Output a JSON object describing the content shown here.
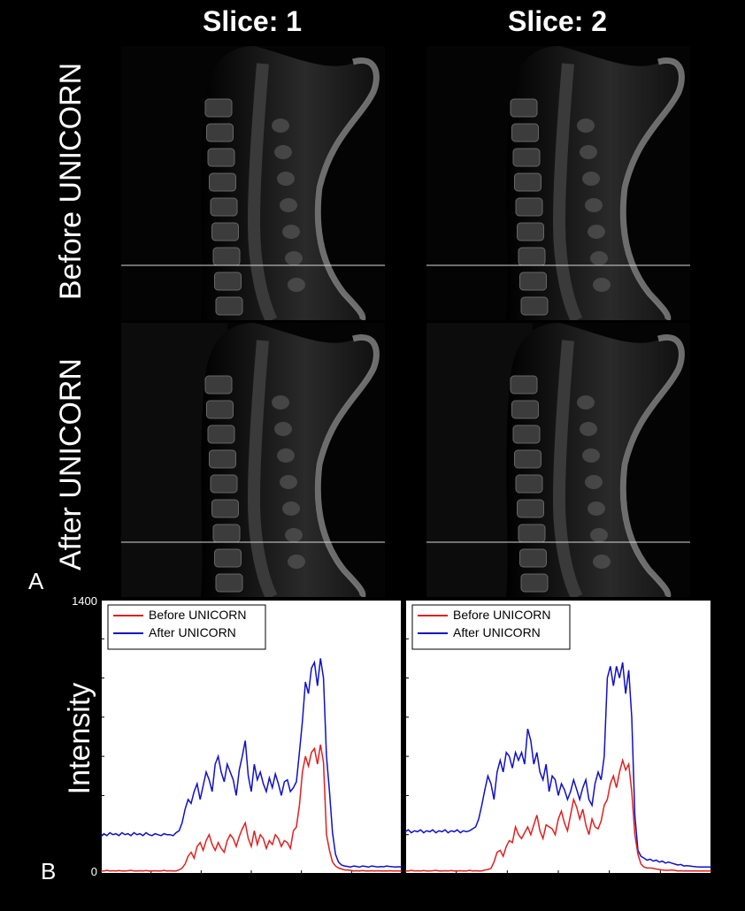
{
  "columns": [
    "Slice: 1",
    "Slice: 2"
  ],
  "rows": [
    "Before UNICORN",
    "After UNICORN"
  ],
  "panel_labels": {
    "a": "A",
    "b": "B"
  },
  "colors": {
    "before": "#e02020",
    "after": "#1010c8"
  },
  "chart_data": [
    {
      "type": "line",
      "ylabel": "Intensity",
      "ylim": [
        0,
        1400
      ],
      "ytick_labels": [
        "0",
        "1400"
      ],
      "legend_position": "top-left",
      "x": [
        0,
        3,
        6,
        9,
        12,
        15,
        18,
        21,
        24,
        27,
        30,
        33,
        36,
        39,
        42,
        45,
        48,
        51,
        54,
        57,
        60,
        63,
        66,
        69,
        72,
        75,
        78,
        81,
        84,
        87,
        90,
        93,
        96,
        99,
        102,
        105,
        108,
        111,
        114,
        117,
        120,
        123,
        126,
        129,
        132,
        135,
        138,
        141,
        144,
        147,
        150,
        153,
        156,
        159,
        162,
        165,
        168,
        171,
        174,
        177,
        180,
        183,
        186,
        189,
        192,
        195,
        198,
        201,
        204,
        207,
        210,
        213,
        216,
        219,
        222,
        225,
        228,
        231,
        234,
        237,
        240,
        243,
        246,
        249,
        252,
        255,
        258,
        261,
        264,
        267,
        270,
        273,
        276,
        279,
        282,
        285,
        288,
        291,
        294,
        297,
        300
      ],
      "series": [
        {
          "name": "Before UNICORN",
          "values": [
            15,
            15,
            18,
            15,
            16,
            15,
            17,
            15,
            15,
            16,
            18,
            15,
            15,
            16,
            15,
            17,
            15,
            15,
            16,
            15,
            15,
            18,
            15,
            16,
            15,
            15,
            20,
            30,
            50,
            90,
            110,
            80,
            140,
            160,
            120,
            170,
            200,
            150,
            120,
            160,
            130,
            110,
            170,
            200,
            180,
            140,
            190,
            230,
            260,
            180,
            140,
            220,
            150,
            200,
            180,
            130,
            170,
            150,
            200,
            180,
            140,
            170,
            160,
            130,
            220,
            240,
            350,
            520,
            600,
            550,
            620,
            640,
            560,
            660,
            570,
            200,
            120,
            60,
            40,
            30,
            25,
            20,
            20,
            18,
            15,
            16,
            15,
            17,
            15,
            15,
            16,
            15,
            16,
            15,
            15,
            15,
            16,
            15,
            15,
            15,
            15
          ]
        },
        {
          "name": "After UNICORN",
          "values": [
            190,
            205,
            195,
            210,
            200,
            205,
            195,
            210,
            200,
            205,
            195,
            210,
            200,
            205,
            195,
            210,
            200,
            195,
            205,
            200,
            195,
            205,
            200,
            200,
            195,
            210,
            220,
            260,
            330,
            380,
            360,
            420,
            460,
            380,
            450,
            520,
            480,
            420,
            560,
            600,
            520,
            470,
            560,
            520,
            480,
            400,
            530,
            600,
            680,
            500,
            420,
            560,
            480,
            520,
            460,
            420,
            490,
            440,
            510,
            460,
            400,
            470,
            480,
            420,
            440,
            470,
            620,
            780,
            980,
            920,
            1050,
            1080,
            960,
            1100,
            1000,
            600,
            420,
            210,
            100,
            60,
            45,
            40,
            38,
            35,
            40,
            38,
            35,
            40,
            38,
            35,
            40,
            38,
            35,
            37,
            36,
            40,
            38,
            36,
            35,
            36,
            35
          ]
        }
      ]
    },
    {
      "type": "line",
      "ylabel": "",
      "ylim": [
        0,
        1400
      ],
      "ytick_labels": [],
      "legend_position": "top-left",
      "x": [
        0,
        3,
        6,
        9,
        12,
        15,
        18,
        21,
        24,
        27,
        30,
        33,
        36,
        39,
        42,
        45,
        48,
        51,
        54,
        57,
        60,
        63,
        66,
        69,
        72,
        75,
        78,
        81,
        84,
        87,
        90,
        93,
        96,
        99,
        102,
        105,
        108,
        111,
        114,
        117,
        120,
        123,
        126,
        129,
        132,
        135,
        138,
        141,
        144,
        147,
        150,
        153,
        156,
        159,
        162,
        165,
        168,
        171,
        174,
        177,
        180,
        183,
        186,
        189,
        192,
        195,
        198,
        201,
        204,
        207,
        210,
        213,
        216,
        219,
        222,
        225,
        228,
        231,
        234,
        237,
        240,
        243,
        246,
        249,
        252,
        255,
        258,
        261,
        264,
        267,
        270,
        273,
        276,
        279,
        282,
        285,
        288,
        291,
        294,
        297,
        300
      ],
      "series": [
        {
          "name": "Before UNICORN",
          "values": [
            15,
            15,
            18,
            15,
            16,
            15,
            17,
            15,
            15,
            16,
            18,
            15,
            15,
            16,
            15,
            17,
            15,
            15,
            16,
            15,
            15,
            18,
            15,
            16,
            15,
            15,
            20,
            22,
            28,
            60,
            110,
            120,
            90,
            140,
            170,
            160,
            240,
            200,
            180,
            210,
            240,
            200,
            250,
            300,
            220,
            180,
            250,
            240,
            230,
            200,
            280,
            320,
            260,
            220,
            300,
            380,
            340,
            280,
            330,
            250,
            200,
            280,
            240,
            230,
            270,
            350,
            380,
            460,
            500,
            440,
            520,
            580,
            530,
            560,
            420,
            200,
            100,
            50,
            35,
            30,
            30,
            28,
            25,
            22,
            20,
            18,
            18,
            20,
            18,
            15,
            16,
            15,
            15,
            15,
            15,
            15,
            15,
            15,
            15,
            15,
            15
          ]
        },
        {
          "name": "After UNICORN",
          "values": [
            215,
            225,
            210,
            220,
            215,
            225,
            210,
            220,
            215,
            225,
            210,
            220,
            215,
            225,
            210,
            220,
            215,
            225,
            210,
            220,
            215,
            220,
            230,
            240,
            280,
            350,
            430,
            500,
            460,
            380,
            520,
            580,
            520,
            620,
            600,
            540,
            620,
            580,
            620,
            560,
            740,
            680,
            560,
            620,
            520,
            480,
            560,
            420,
            500,
            480,
            400,
            460,
            430,
            380,
            420,
            480,
            430,
            380,
            440,
            480,
            380,
            350,
            460,
            520,
            480,
            600,
            1000,
            1060,
            960,
            1060,
            1000,
            1080,
            920,
            1040,
            800,
            300,
            120,
            90,
            80,
            70,
            75,
            65,
            70,
            60,
            65,
            55,
            60,
            55,
            50,
            45,
            48,
            40,
            42,
            40,
            38,
            36,
            35,
            35,
            35,
            35,
            35
          ]
        }
      ]
    }
  ]
}
